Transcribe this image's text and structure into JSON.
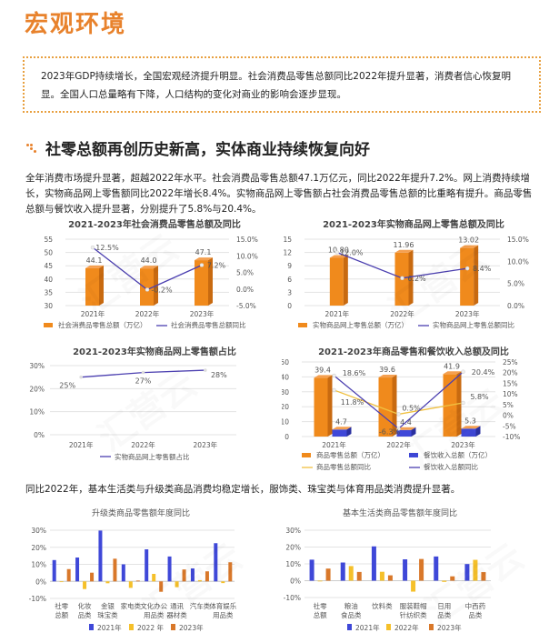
{
  "page": {
    "title": "宏观环境",
    "intro": "2023年GDP持续增长，全国宏观经济提升明显。社会消费品零售总额同比2022年提升显著，消费者信心恢复明显。全国人口总量略有下降，人口结构的变化对商业的影响会逐步显现。",
    "section_title": "社零总额再创历史新高，实体商业持续恢复向好",
    "section_para": "全年消费市场提升显著，超越2022年水平。社会消费品零售总额47.1万亿元，同比2022年提升7.2%。网上消费持续增长，实物商品网上零售额同比2022年增长8.4%。实物商品网上零售额占社会消费品零售总额的比重略有提升。商品零售总额与餐饮收入提升显著，分别提升了5.8%与20.4%。",
    "category_para": "同比2022年，基本生活类与升级类商品消费均稳定增长，服饰类、珠宝类与体育用品类消费提升显著。",
    "watermark": "汇营云"
  },
  "colors": {
    "accent": "#E8822C",
    "bar_orange": "#F08A1C",
    "bar_orange_side": "#C86A10",
    "line_purple": "#4B3FB0",
    "bar_blue": "#3F48D8",
    "bar_yellow": "#F5C02A",
    "bar_dark_orange": "#D9782A",
    "line_yellow": "#F0C040"
  },
  "chart_data": [
    {
      "id": "retail_total",
      "type": "bar",
      "title": "2021-2023年社会消费品零售总额及同比",
      "categories": [
        "2021年",
        "2022年",
        "2023年"
      ],
      "series": [
        {
          "name": "社会消费品零售总额（万亿）",
          "type": "bar",
          "axis": "left",
          "values": [
            44.1,
            44.0,
            47.1
          ],
          "labels": [
            "44.1",
            "44.0",
            "47.1"
          ]
        },
        {
          "name": "社会消费品零售总额同比",
          "type": "line",
          "axis": "right",
          "values": [
            12.5,
            -0.2,
            7.2
          ],
          "labels": [
            "12.5%",
            "-0.2%",
            "7.2%"
          ]
        }
      ],
      "yticks_left": [
        "55",
        "50",
        "45",
        "40",
        "35",
        "30"
      ],
      "yticks_right": [
        "15.0%",
        "10.0%",
        "5.0%",
        "0.0%",
        "-5.0%"
      ],
      "ylim_left": [
        30,
        55
      ],
      "ylim_right": [
        -5,
        15
      ]
    },
    {
      "id": "online_retail",
      "type": "bar",
      "title": "2021-2023年实物商品网上零售总额及同比",
      "categories": [
        "2021年",
        "2022年",
        "2023年"
      ],
      "series": [
        {
          "name": "实物商品网上零售总额（万亿）",
          "type": "bar",
          "axis": "left",
          "values": [
            10.8,
            11.96,
            13.02
          ],
          "labels": [
            "10.80",
            "11.96",
            "13.02"
          ]
        },
        {
          "name": "实物商品网上零售总额同比",
          "type": "line",
          "axis": "right",
          "values": [
            12.0,
            6.2,
            8.4
          ],
          "labels": [
            "12.0%",
            "6.2%",
            "8.4%"
          ]
        }
      ],
      "yticks_left": [
        "15",
        "12",
        "9",
        "6",
        "3",
        "0"
      ],
      "yticks_right": [
        "15.0%",
        "10.0%",
        "5.0%",
        "0.0%"
      ],
      "ylim_left": [
        0,
        15
      ],
      "ylim_right": [
        0,
        15
      ]
    },
    {
      "id": "online_share",
      "type": "line",
      "title": "2021-2023年实物商品网上零售额占比",
      "categories": [
        "2021年",
        "2022年",
        "2023年"
      ],
      "series": [
        {
          "name": "实物商品网上零售额占比",
          "values": [
            25,
            27,
            28
          ],
          "labels": [
            "25%",
            "27%",
            "28%"
          ]
        }
      ],
      "yticks": [
        "30%",
        "20%",
        "10%",
        "0%"
      ],
      "ylim": [
        0,
        30
      ]
    },
    {
      "id": "goods_catering",
      "type": "bar",
      "title": "2021-2023年商品零售和餐饮收入总额及同比",
      "categories": [
        "2021年",
        "2022年",
        "2023年"
      ],
      "series": [
        {
          "name": "商品零售总额（万亿）",
          "type": "bar",
          "axis": "left",
          "values": [
            39.4,
            39.6,
            41.9
          ],
          "labels": [
            "39.4",
            "39.6",
            "41.9"
          ]
        },
        {
          "name": "餐饮收入总额（万亿）",
          "type": "bar",
          "axis": "left",
          "values": [
            4.7,
            4.4,
            5.3
          ],
          "labels": [
            "4.7",
            "4.4",
            "5.3"
          ]
        },
        {
          "name": "商品零售总额同比",
          "type": "line",
          "axis": "right",
          "values": [
            11.8,
            0.5,
            5.8
          ],
          "labels": [
            "11.8%",
            "0.5%",
            "5.8%"
          ]
        },
        {
          "name": "餐饮收入总额同比",
          "type": "line",
          "axis": "right",
          "values": [
            18.6,
            -6.3,
            20.4
          ],
          "labels": [
            "18.6%",
            "-6.3%",
            "20.4%"
          ]
        }
      ],
      "yticks_left": [
        "50",
        "40",
        "30",
        "20",
        "10",
        "0"
      ],
      "yticks_right": [
        "25%",
        "20%",
        "15%",
        "10%",
        "5%",
        "0%",
        "-5%",
        "-10%"
      ],
      "ylim_left": [
        0,
        50
      ],
      "ylim_right": [
        -10,
        25
      ]
    },
    {
      "id": "upgrade_categories",
      "type": "bar",
      "title": "升级类商品零售额年度同比",
      "categories": [
        "社零总额",
        "化妆品类",
        "金银珠宝类",
        "家电类",
        "文化办公用品类",
        "通讯器材类",
        "汽车类",
        "体育娱乐用品类"
      ],
      "category_lines": [
        [
          "社零",
          "总额"
        ],
        [
          "化妆",
          "品类"
        ],
        [
          "金银",
          "珠宝类"
        ],
        [
          "家电类"
        ],
        [
          "文化办公",
          "用品类"
        ],
        [
          "通讯",
          "器材类"
        ],
        [
          "汽车类"
        ],
        [
          "体育娱乐",
          "用品类"
        ]
      ],
      "series": [
        {
          "name": "2021年",
          "values": [
            12.5,
            14.0,
            29.8,
            10.0,
            18.8,
            14.6,
            7.6,
            22.4
          ]
        },
        {
          "name": "2022 年",
          "values": [
            -0.2,
            -4.5,
            -1.1,
            -3.8,
            4.4,
            -3.4,
            0.7,
            -1.0
          ]
        },
        {
          "name": "2023年",
          "values": [
            7.2,
            5.1,
            13.3,
            0.5,
            -6.1,
            7.0,
            5.9,
            11.2
          ]
        }
      ],
      "yticks": [
        "30%",
        "20%",
        "10%",
        "0%",
        "-10%"
      ],
      "ylim": [
        -10,
        30
      ]
    },
    {
      "id": "basic_categories",
      "type": "bar",
      "title": "基本生活类商品零售额年度同比",
      "categories": [
        "社零总额",
        "粮油食品类",
        "饮料类",
        "服装鞋帽针纺织类",
        "日用品类",
        "中西药品类"
      ],
      "category_lines": [
        [
          "社零",
          "总额"
        ],
        [
          "粮油",
          "食品类"
        ],
        [
          "饮料类"
        ],
        [
          "服装鞋帽",
          "针纺织类"
        ],
        [
          "日用",
          "品类"
        ],
        [
          "中西药",
          "品类"
        ]
      ],
      "series": [
        {
          "name": "2021年",
          "values": [
            12.5,
            10.8,
            20.4,
            12.7,
            14.4,
            9.9
          ]
        },
        {
          "name": "2022年",
          "values": [
            -0.2,
            8.7,
            5.3,
            -6.5,
            -0.7,
            12.4
          ]
        },
        {
          "name": "2023年",
          "values": [
            7.2,
            5.2,
            3.2,
            12.9,
            2.6,
            5.1
          ]
        }
      ],
      "yticks": [
        "30%",
        "20%",
        "10%",
        "0%",
        "-10%"
      ],
      "ylim": [
        -10,
        30
      ]
    }
  ]
}
